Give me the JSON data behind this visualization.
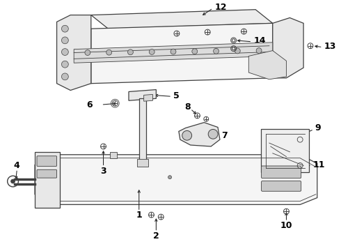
{
  "bg_color": "#ffffff",
  "line_color": "#404040",
  "label_color": "#000000",
  "fill_light": "#f5f5f5",
  "fill_mid": "#e8e8e8",
  "fill_dark": "#d8d8d8"
}
